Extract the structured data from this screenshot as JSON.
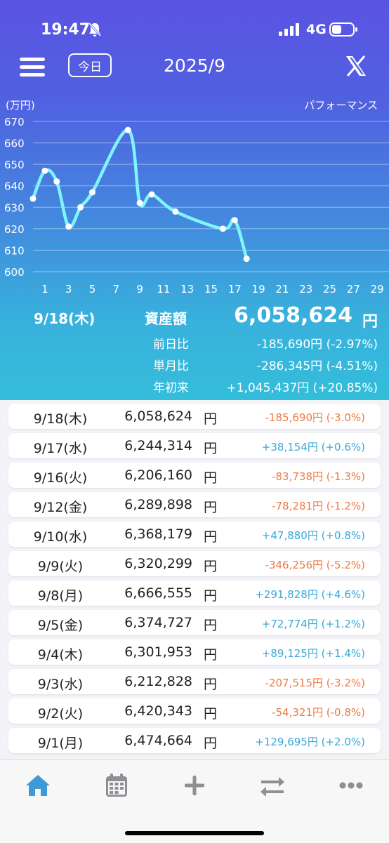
{
  "status_bar": {
    "time": "19:47",
    "network": "4G",
    "icons": [
      "bell-slash-icon",
      "signal-icon",
      "battery-icon"
    ]
  },
  "navbar": {
    "today_label": "今日",
    "title": "2025/9",
    "icons": [
      "menu-icon",
      "x-logo-icon"
    ]
  },
  "chart_data": {
    "type": "line",
    "ylabel": "(万円)",
    "title": "パフォーマンス",
    "ylim": [
      600,
      670
    ],
    "yticks": [
      670,
      660,
      650,
      640,
      630,
      620,
      610,
      600
    ],
    "xlim": [
      0,
      30
    ],
    "xticks": [
      1,
      3,
      5,
      7,
      9,
      11,
      13,
      15,
      17,
      19,
      21,
      23,
      25,
      27,
      29
    ],
    "grid": true,
    "series": [
      {
        "color": "#7ff5ff",
        "x": [
          0,
          1,
          2,
          3,
          4,
          5,
          8,
          9,
          10,
          12,
          16,
          17,
          18
        ],
        "y": [
          634,
          647,
          642,
          621,
          630,
          637,
          666,
          632,
          636,
          628,
          620,
          624,
          606
        ]
      }
    ]
  },
  "summary": {
    "date": "9/18(木)",
    "asset_label": "資産額",
    "asset_value": "6,058,624",
    "asset_unit": "円",
    "rows": [
      {
        "label": "前日比",
        "value": "-185,690円 (-2.97%)"
      },
      {
        "label": "単月比",
        "value": "-286,345円 (-4.51%)"
      },
      {
        "label": "年初来",
        "value": "+1,045,437円 (+20.85%)"
      }
    ]
  },
  "history": [
    {
      "date": "9/18(木)",
      "amount": "6,058,624",
      "unit": "円",
      "change": "-185,690円 (-3.0%)",
      "sign": "neg"
    },
    {
      "date": "9/17(水)",
      "amount": "6,244,314",
      "unit": "円",
      "change": "+38,154円 (+0.6%)",
      "sign": "pos"
    },
    {
      "date": "9/16(火)",
      "amount": "6,206,160",
      "unit": "円",
      "change": "-83,738円 (-1.3%)",
      "sign": "neg"
    },
    {
      "date": "9/12(金)",
      "amount": "6,289,898",
      "unit": "円",
      "change": "-78,281円 (-1.2%)",
      "sign": "neg"
    },
    {
      "date": "9/10(水)",
      "amount": "6,368,179",
      "unit": "円",
      "change": "+47,880円 (+0.8%)",
      "sign": "pos"
    },
    {
      "date": "9/9(火)",
      "amount": "6,320,299",
      "unit": "円",
      "change": "-346,256円 (-5.2%)",
      "sign": "neg"
    },
    {
      "date": "9/8(月)",
      "amount": "6,666,555",
      "unit": "円",
      "change": "+291,828円 (+4.6%)",
      "sign": "pos"
    },
    {
      "date": "9/5(金)",
      "amount": "6,374,727",
      "unit": "円",
      "change": "+72,774円 (+1.2%)",
      "sign": "pos"
    },
    {
      "date": "9/4(木)",
      "amount": "6,301,953",
      "unit": "円",
      "change": "+89,125円 (+1.4%)",
      "sign": "pos"
    },
    {
      "date": "9/3(水)",
      "amount": "6,212,828",
      "unit": "円",
      "change": "-207,515円 (-3.2%)",
      "sign": "neg"
    },
    {
      "date": "9/2(火)",
      "amount": "6,420,343",
      "unit": "円",
      "change": "-54,321円 (-0.8%)",
      "sign": "neg"
    },
    {
      "date": "9/1(月)",
      "amount": "6,474,664",
      "unit": "円",
      "change": "+129,695円 (+2.0%)",
      "sign": "pos"
    }
  ],
  "tabbar": {
    "icons": [
      "home-icon",
      "calendar-icon",
      "plus-icon",
      "transfer-icon",
      "more-icon"
    ],
    "active_color": "#3d9ad6",
    "inactive_color": "#8e8e93"
  }
}
